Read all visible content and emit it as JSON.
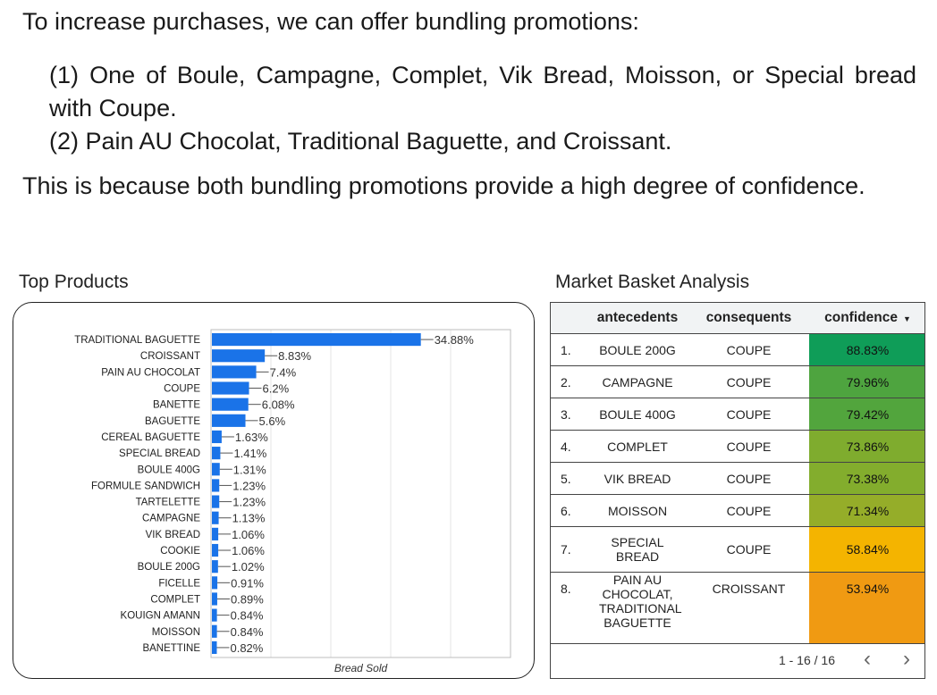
{
  "intro": "To increase purchases, we can offer bundling promotions:",
  "promotions": [
    "(1) One of Boule, Campagne, Complet, Vik Bread, Moisson, or Special bread with Coupe.",
    "(2) Pain AU Chocolat, Traditional Baguette, and Croissant."
  ],
  "conclusion": "This is because both bundling promotions provide a high degree of confidence.",
  "chart_title": "Top Products",
  "table_title": "Market Basket Analysis",
  "chart_data": {
    "type": "bar",
    "orientation": "horizontal",
    "categories": [
      "TRADITIONAL BAGUETTE",
      "CROISSANT",
      "PAIN AU CHOCOLAT",
      "COUPE",
      "BANETTE",
      "BAGUETTE",
      "CEREAL BAGUETTE",
      "SPECIAL BREAD",
      "BOULE 400G",
      "FORMULE SANDWICH",
      "TARTELETTE",
      "CAMPAGNE",
      "VIK BREAD",
      "COOKIE",
      "BOULE 200G",
      "FICELLE",
      "COMPLET",
      "KOUIGN AMANN",
      "MOISSON",
      "BANETTINE"
    ],
    "values": [
      34.88,
      8.83,
      7.4,
      6.2,
      6.08,
      5.6,
      1.63,
      1.41,
      1.31,
      1.23,
      1.23,
      1.13,
      1.06,
      1.06,
      1.02,
      0.91,
      0.89,
      0.84,
      0.84,
      0.82
    ],
    "labels": [
      "34.88%",
      "8.83%",
      "7.4%",
      "6.2%",
      "6.08%",
      "5.6%",
      "1.63%",
      "1.41%",
      "1.31%",
      "1.23%",
      "1.23%",
      "1.13%",
      "1.06%",
      "1.06%",
      "1.02%",
      "0.91%",
      "0.89%",
      "0.84%",
      "0.84%",
      "0.82%"
    ],
    "xlabel": "Bread Sold",
    "xlim": [
      0,
      50
    ],
    "grid": true,
    "color": "#1a73e8"
  },
  "table": {
    "headers": [
      "antecedents",
      "consequents",
      "confidence"
    ],
    "sort_indicator": "▼",
    "rows": [
      {
        "idx": "1.",
        "antecedents": "BOULE 200G",
        "consequents": "COUPE",
        "confidence": "88.83%",
        "color": "#0f9d58"
      },
      {
        "idx": "2.",
        "antecedents": "CAMPAGNE",
        "consequents": "COUPE",
        "confidence": "79.96%",
        "color": "#4ea43f"
      },
      {
        "idx": "3.",
        "antecedents": "BOULE 400G",
        "consequents": "COUPE",
        "confidence": "79.42%",
        "color": "#52a53d"
      },
      {
        "idx": "4.",
        "antecedents": "COMPLET",
        "consequents": "COUPE",
        "confidence": "73.86%",
        "color": "#7fac2e"
      },
      {
        "idx": "5.",
        "antecedents": "VIK BREAD",
        "consequents": "COUPE",
        "confidence": "73.38%",
        "color": "#83ad2d"
      },
      {
        "idx": "6.",
        "antecedents": "MOISSON",
        "consequents": "COUPE",
        "confidence": "71.34%",
        "color": "#95ad29"
      },
      {
        "idx": "7.",
        "antecedents": "SPECIAL BREAD",
        "consequents": "COUPE",
        "confidence": "58.84%",
        "color": "#f4b400"
      },
      {
        "idx": "8.",
        "antecedents": "PAIN AU CHOCOLAT, TRADITIONAL BAGUETTE",
        "consequents": "CROISSANT",
        "confidence": "53.94%",
        "color": "#f09a12"
      }
    ],
    "pagination": "1 - 16 / 16"
  }
}
